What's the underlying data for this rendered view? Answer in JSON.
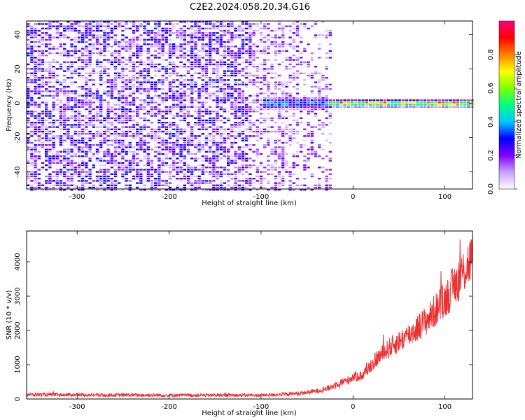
{
  "title": "C2E2.2024.058.20.34.G16",
  "chart_data": [
    {
      "type": "heatmap",
      "xlabel": "Height of straight line (km)",
      "ylabel": "Frequency (Hz)",
      "xlim": [
        -355,
        130
      ],
      "ylim": [
        -50,
        48
      ],
      "xticks": [
        -300,
        -200,
        -100,
        0,
        100
      ],
      "yticks": [
        -40,
        -20,
        0,
        20,
        40
      ],
      "grid": false,
      "colorbar": {
        "label": "Normalized spectral amplitude",
        "range": [
          0,
          1
        ],
        "ticks": [
          "0.0",
          "0.2",
          "0.4",
          "0.6",
          "0.8"
        ],
        "colors": [
          "#ffffff",
          "#c8a0ff",
          "#8000ff",
          "#0000ff",
          "#00c8ff",
          "#00ff80",
          "#80ff00",
          "#ffff00",
          "#ff8000",
          "#ff0000",
          "#ff0080"
        ]
      },
      "noise_region_x": [
        -355,
        -25
      ],
      "signal_line": {
        "x_start": -100,
        "x_end": 130,
        "frequency": 0.5,
        "peak_amplitude": 0.95
      }
    },
    {
      "type": "line",
      "xlabel": "Height of straight line (km)",
      "ylabel": "SNR (10 * v/v)",
      "xlim": [
        -355,
        130
      ],
      "ylim": [
        0,
        4900
      ],
      "xticks": [
        -300,
        -200,
        -100,
        0,
        100
      ],
      "yticks": [
        0,
        1000,
        2000,
        3000,
        4000
      ],
      "grid": false,
      "series": [
        {
          "color": "#ee3030",
          "points": [
            [
              -355,
              130
            ],
            [
              -300,
              120
            ],
            [
              -200,
              110
            ],
            [
              -100,
              110
            ],
            [
              -80,
              130
            ],
            [
              -60,
              160
            ],
            [
              -40,
              230
            ],
            [
              -25,
              330
            ],
            [
              -15,
              480
            ],
            [
              -5,
              550
            ],
            [
              0,
              650
            ],
            [
              10,
              680
            ],
            [
              15,
              850
            ],
            [
              25,
              1150
            ],
            [
              40,
              1500
            ],
            [
              60,
              1850
            ],
            [
              80,
              2300
            ],
            [
              100,
              2900
            ],
            [
              115,
              3500
            ],
            [
              130,
              4150
            ]
          ]
        }
      ]
    }
  ]
}
